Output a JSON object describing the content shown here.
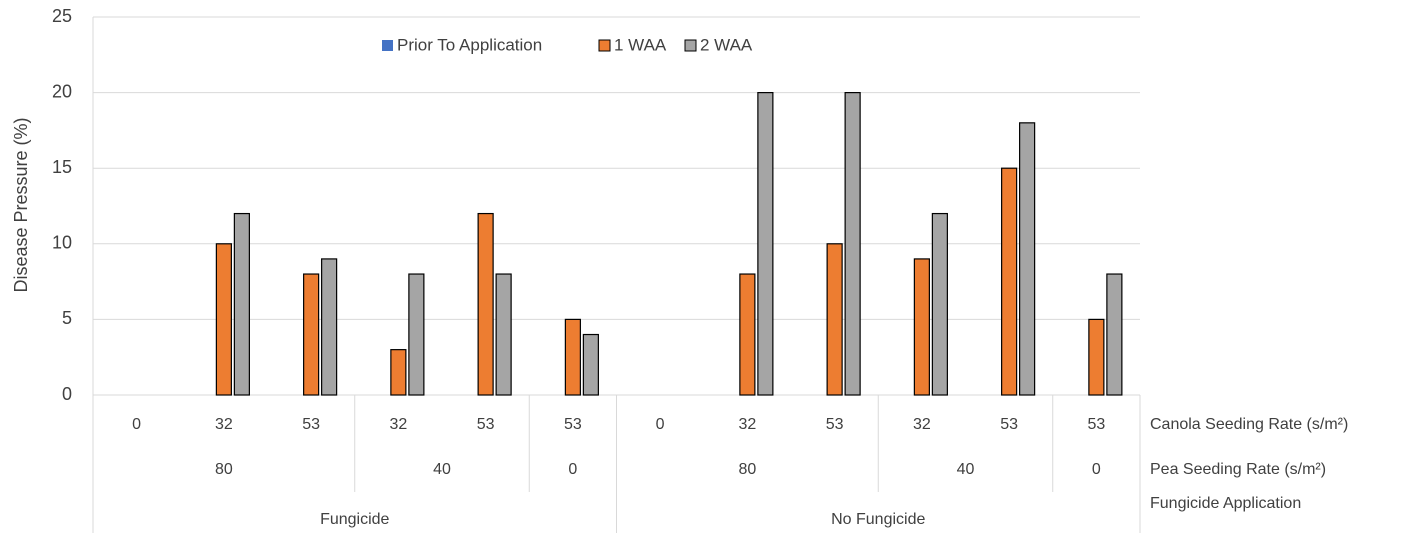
{
  "chart_data": {
    "type": "bar",
    "y_label": "Disease Pressure (%)",
    "ylim": [
      0,
      25
    ],
    "yticks": [
      0,
      5,
      10,
      15,
      20,
      25
    ],
    "grid": true,
    "legend": "top",
    "category_levels": [
      {
        "label": "Canola Seeding Rate (s/m²)",
        "categories": [
          "0",
          "32",
          "53",
          "32",
          "53",
          "53",
          "0",
          "32",
          "53",
          "32",
          "53",
          "53"
        ]
      },
      {
        "label": "Pea Seeding Rate (s/m²)",
        "groups": [
          {
            "name": "80",
            "size": 3
          },
          {
            "name": "40",
            "size": 2
          },
          {
            "name": "0",
            "size": 1
          },
          {
            "name": "80",
            "size": 3
          },
          {
            "name": "40",
            "size": 2
          },
          {
            "name": "0",
            "size": 1
          }
        ]
      },
      {
        "label": "Fungicide Application",
        "groups": [
          {
            "name": "Fungicide",
            "size": 6
          },
          {
            "name": "No Fungicide",
            "size": 6
          }
        ]
      }
    ],
    "series": [
      {
        "name": "Prior To Application",
        "color": "#4472c4",
        "values": [
          0,
          0,
          0,
          0,
          0,
          0,
          0,
          0,
          0,
          0,
          0,
          0
        ]
      },
      {
        "name": "1 WAA",
        "color": "#ed7d31",
        "values": [
          0,
          10,
          8,
          3,
          12,
          5,
          0,
          8,
          10,
          9,
          15,
          5
        ]
      },
      {
        "name": "2 WAA",
        "color": "#a5a5a5",
        "values": [
          0,
          12,
          9,
          8,
          8,
          4,
          0,
          20,
          20,
          12,
          18,
          8
        ]
      }
    ]
  }
}
